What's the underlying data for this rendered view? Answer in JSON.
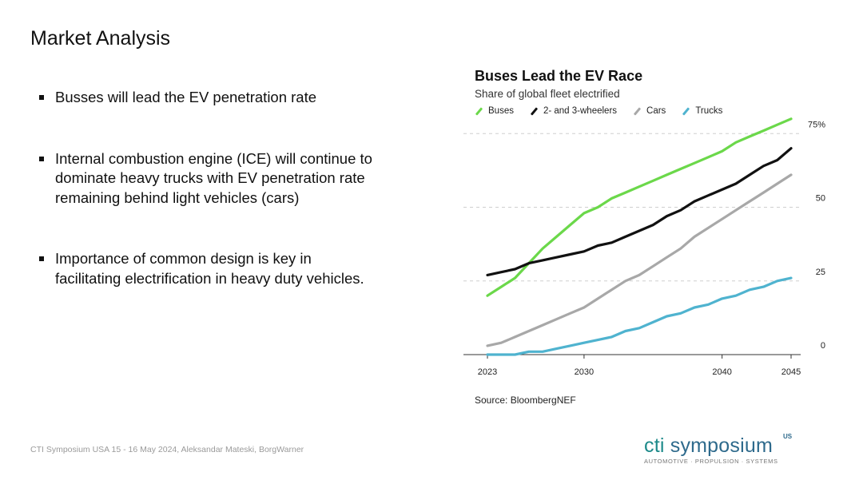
{
  "slide": {
    "title": "Market Analysis",
    "bullets": [
      "Busses will lead the EV penetration rate",
      "Internal combustion engine (ICE) will continue to dominate heavy trucks with EV penetration rate remaining behind light vehicles (cars)",
      "Importance of common design is key in facilitating electrification in heavy duty vehicles."
    ],
    "footer": "CTI Symposium USA 15 - 16 May 2024, Aleksandar Mateski, BorgWarner",
    "logo": {
      "cti": "cti",
      "symposium": " symposium",
      "sup": "US",
      "tagline": "AUTOMOTIVE · PROPULSION · SYSTEMS"
    }
  },
  "chart_data": {
    "type": "line",
    "title": "Buses Lead the EV Race",
    "subtitle": "Share of global fleet electrified",
    "source": "Source: BloombergNEF",
    "xlabel": "",
    "ylabel": "",
    "x": [
      2023,
      2024,
      2025,
      2026,
      2027,
      2028,
      2029,
      2030,
      2031,
      2032,
      2033,
      2034,
      2035,
      2036,
      2037,
      2038,
      2039,
      2040,
      2041,
      2042,
      2043,
      2044,
      2045
    ],
    "xlim": [
      2023,
      2046.5
    ],
    "ylim": [
      0,
      80
    ],
    "x_ticks": [
      2023,
      2030,
      2040,
      2045
    ],
    "x_tick_labels": [
      "2023",
      "2030",
      "2040",
      "2045"
    ],
    "y_ticks": [
      0,
      25,
      50,
      75
    ],
    "y_tick_labels": [
      "0",
      "25",
      "50",
      "75%"
    ],
    "grid": "horizontal-dashed",
    "legend_position": "top-left",
    "series": [
      {
        "name": "Buses",
        "color": "#6bd84a",
        "values": [
          20,
          23,
          26,
          31,
          36,
          40,
          44,
          48,
          50,
          53,
          55,
          57,
          59,
          61,
          63,
          65,
          67,
          69,
          72,
          74,
          76,
          78,
          80
        ]
      },
      {
        "name": "2- and 3-wheelers",
        "color": "#111111",
        "values": [
          27,
          28,
          29,
          31,
          32,
          33,
          34,
          35,
          37,
          38,
          40,
          42,
          44,
          47,
          49,
          52,
          54,
          56,
          58,
          61,
          64,
          66,
          70
        ]
      },
      {
        "name": "Cars",
        "color": "#a8a8a8",
        "values": [
          3,
          4,
          6,
          8,
          10,
          12,
          14,
          16,
          19,
          22,
          25,
          27,
          30,
          33,
          36,
          40,
          43,
          46,
          49,
          52,
          55,
          58,
          61
        ]
      },
      {
        "name": "Trucks",
        "color": "#4fb3cf",
        "values": [
          0,
          0,
          0,
          1,
          1,
          2,
          3,
          4,
          5,
          6,
          8,
          9,
          11,
          13,
          14,
          16,
          17,
          19,
          20,
          22,
          23,
          25,
          26
        ]
      }
    ]
  }
}
